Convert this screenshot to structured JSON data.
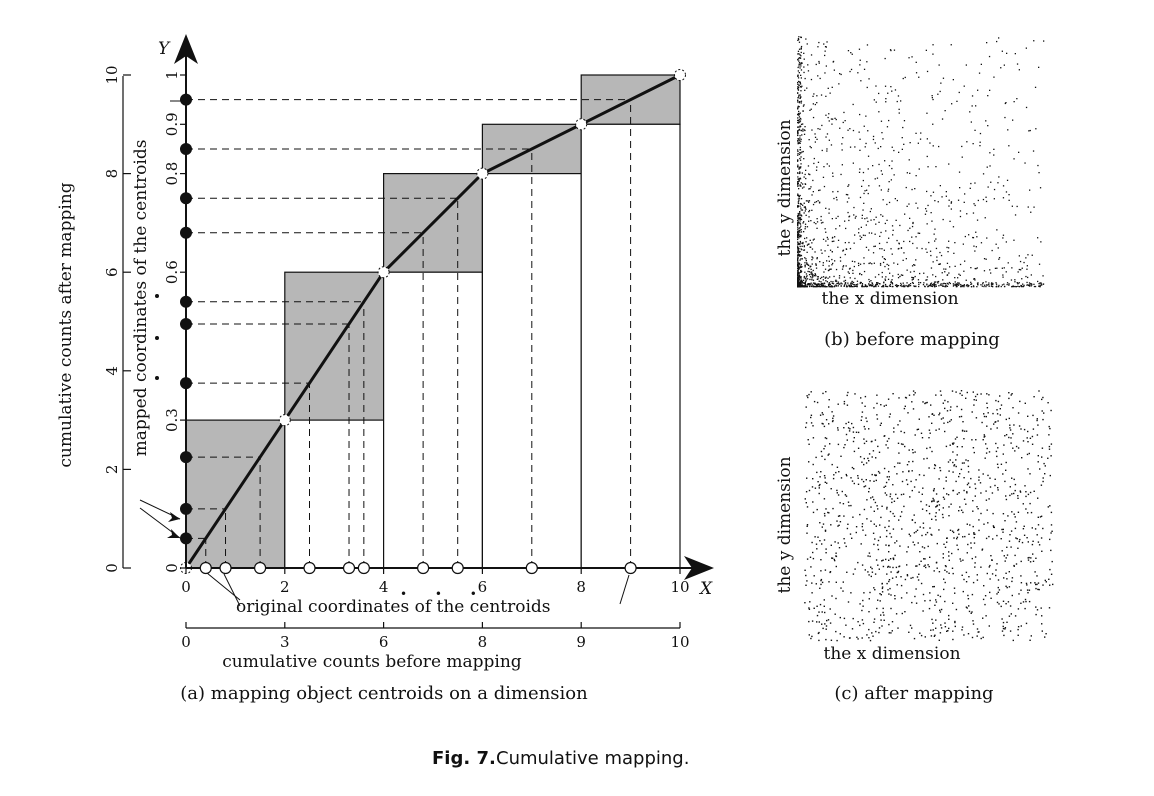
{
  "figure": {
    "caption_label": "Fig. 7.",
    "caption_text": "Cumulative mapping."
  },
  "panel_a": {
    "caption": "(a)  mapping object centroids on a dimension",
    "y_axis_label": "Y",
    "x_axis_label": "X",
    "left_axis_label": "cumulative counts after mapping",
    "mapped_coords_label": "mapped coordinates of the centroids",
    "original_coords_label": "original coordinates of the centroids",
    "bottom_axis_label": "cumulative counts before mapping",
    "ellipsis": "• • •",
    "x_ticks": [
      {
        "value": 0,
        "label": "0"
      },
      {
        "value": 2,
        "label": "2"
      },
      {
        "value": 4,
        "label": "4"
      },
      {
        "value": 6,
        "label": "6"
      },
      {
        "value": 8,
        "label": "8"
      },
      {
        "value": 10,
        "label": "10"
      }
    ],
    "y_ticks": [
      {
        "value": 0,
        "label": "0"
      },
      {
        "value": 0.3,
        "label": "0.3"
      },
      {
        "value": 0.6,
        "label": "0.6"
      },
      {
        "value": 0.8,
        "label": "0.8"
      },
      {
        "value": 0.9,
        "label": "0.9"
      },
      {
        "value": 1,
        "label": "1"
      }
    ],
    "left_ticks": [
      {
        "value": 0,
        "label": "0"
      },
      {
        "value": 2,
        "label": "2"
      },
      {
        "value": 4,
        "label": "4"
      },
      {
        "value": 6,
        "label": "6"
      },
      {
        "value": 8,
        "label": "8"
      },
      {
        "value": 10,
        "label": "10"
      }
    ],
    "bottom_ticks": [
      {
        "value": 0,
        "label": "0"
      },
      {
        "value": 2,
        "label": "3"
      },
      {
        "value": 4,
        "label": "6"
      },
      {
        "value": 6,
        "label": "8"
      },
      {
        "value": 8,
        "label": "9"
      },
      {
        "value": 10,
        "label": "10"
      }
    ],
    "bars": [
      {
        "x0": 0,
        "x1": 2,
        "y_low": 0,
        "y_high": 0.3
      },
      {
        "x0": 2,
        "x1": 4,
        "y_low": 0.3,
        "y_high": 0.6
      },
      {
        "x0": 4,
        "x1": 6,
        "y_low": 0.6,
        "y_high": 0.8
      },
      {
        "x0": 6,
        "x1": 8,
        "y_low": 0.8,
        "y_high": 0.9
      },
      {
        "x0": 8,
        "x1": 10,
        "y_low": 0.9,
        "y_high": 1.0
      }
    ],
    "curve": [
      [
        0,
        0
      ],
      [
        2,
        0.3
      ],
      [
        4,
        0.6
      ],
      [
        6,
        0.8
      ],
      [
        8,
        0.9
      ],
      [
        10,
        1.0
      ]
    ],
    "centroids_x": [
      0.4,
      0.8,
      1.5,
      2.5,
      3.3,
      3.6,
      4.8,
      5.5,
      7.0,
      9.0
    ],
    "colors": {
      "bar_fill": "#b7b7b7",
      "ink": "#111111"
    }
  },
  "panel_b": {
    "caption": "(b)  before mapping",
    "x_label": "the x dimension",
    "y_label": "the y dimension"
  },
  "panel_c": {
    "caption": "(c)  after mapping",
    "x_label": "the x dimension",
    "y_label": "the y dimension"
  }
}
